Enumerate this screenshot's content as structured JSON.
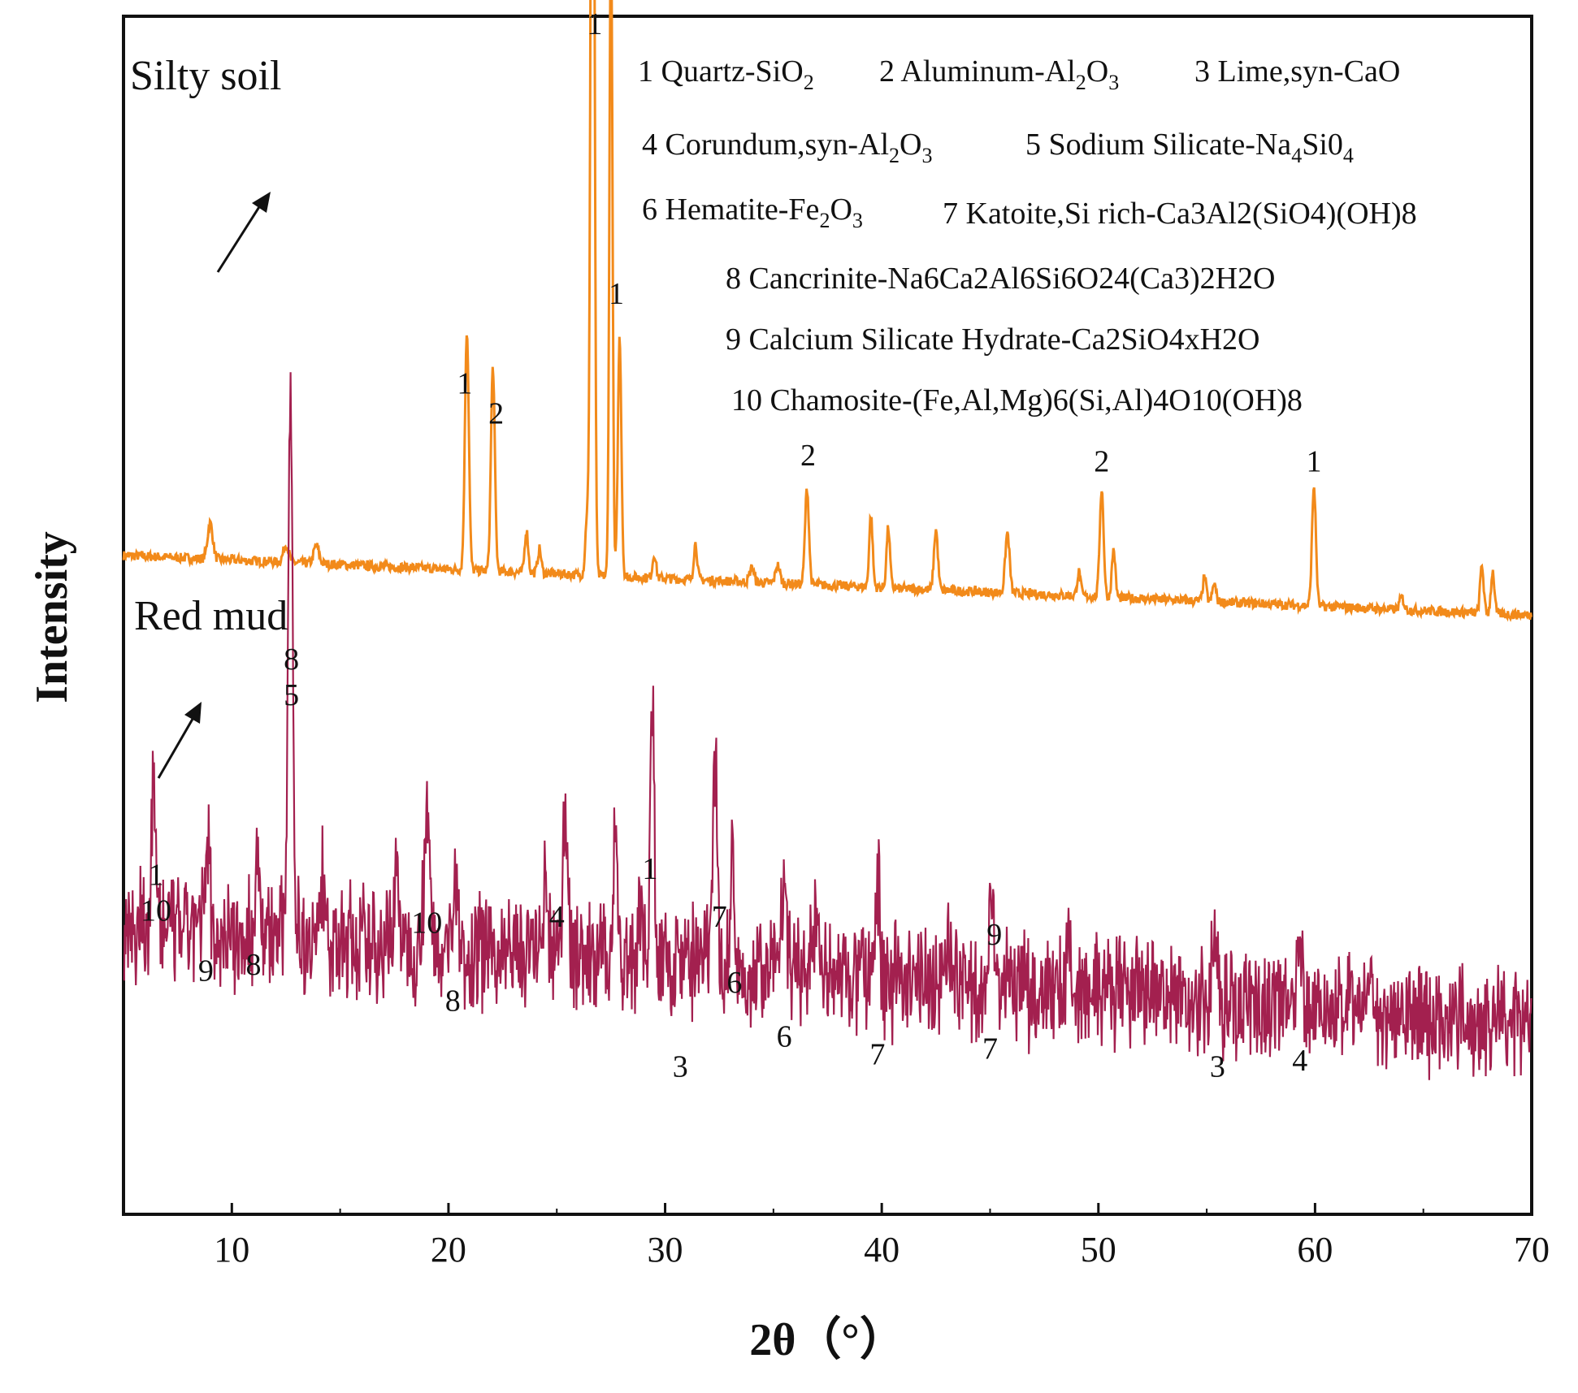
{
  "chart_data": {
    "type": "line",
    "xlabel": "2θ（°）",
    "ylabel": "Intensity",
    "xlim": [
      5,
      70
    ],
    "yaxis": "arbitrary units, traces vertically offset",
    "xticks": [
      10,
      20,
      30,
      40,
      50,
      60,
      70
    ],
    "grid": false,
    "colors": {
      "silty": "#f28a1a",
      "redmud": "#a3204f",
      "axis": "#111111"
    },
    "legend": [
      {
        "id": "1",
        "text": "1 Quartz-SiO",
        "sub": "2",
        "rest": ""
      },
      {
        "id": "2",
        "text": "2 Aluminum-Al",
        "sub": "2",
        "rest": "O",
        "sub2": "3"
      },
      {
        "id": "3",
        "text": "3 Lime,syn-CaO"
      },
      {
        "id": "4",
        "text": "4 Corundum,syn-Al",
        "sub": "2",
        "rest": "O",
        "sub2": "3"
      },
      {
        "id": "5",
        "text": "5 Sodium Silicate-Na",
        "sub": "4",
        "rest": "Si0",
        "sub2": "4"
      },
      {
        "id": "6",
        "text": "6 Hematite-Fe",
        "sub": "2",
        "rest": "O",
        "sub2": "3"
      },
      {
        "id": "7",
        "text": "7 Katoite,Si rich-Ca3Al2(SiO4)(OH)8"
      },
      {
        "id": "8",
        "text": "8 Cancrinite-Na6Ca2Al6Si6O24(Ca3)2H2O"
      },
      {
        "id": "9",
        "text": "9 Calcium Silicate Hydrate-Ca2SiO4xH2O"
      },
      {
        "id": "10",
        "text": "10 Chamosite-(Fe,Al,Mg)6(Si,Al)4O10(OH)8"
      }
    ],
    "series": [
      {
        "name": "Silty soil",
        "color": "#f28a1a",
        "baseline": 0.55,
        "drift": -0.05,
        "noise": 0.004,
        "peaks": [
          [
            9.0,
            0.03,
            0.12
          ],
          [
            12.5,
            0.015,
            0.12
          ],
          [
            13.9,
            0.015,
            0.12
          ],
          [
            20.85,
            0.2,
            0.09
          ],
          [
            22.05,
            0.17,
            0.09
          ],
          [
            23.6,
            0.035,
            0.08
          ],
          [
            24.2,
            0.02,
            0.08
          ],
          [
            26.65,
            1.0,
            0.08
          ],
          [
            27.5,
            0.55,
            0.07
          ],
          [
            27.9,
            0.2,
            0.08
          ],
          [
            26.4,
            0.05,
            0.08
          ],
          [
            29.5,
            0.02,
            0.08
          ],
          [
            31.4,
            0.03,
            0.08
          ],
          [
            34.0,
            0.012,
            0.1
          ],
          [
            35.2,
            0.015,
            0.1
          ],
          [
            36.55,
            0.08,
            0.09
          ],
          [
            39.5,
            0.06,
            0.08
          ],
          [
            40.3,
            0.05,
            0.08
          ],
          [
            42.5,
            0.05,
            0.09
          ],
          [
            45.8,
            0.05,
            0.1
          ],
          [
            49.1,
            0.02,
            0.08
          ],
          [
            50.15,
            0.09,
            0.09
          ],
          [
            50.7,
            0.04,
            0.08
          ],
          [
            54.9,
            0.02,
            0.08
          ],
          [
            55.35,
            0.015,
            0.08
          ],
          [
            59.95,
            0.1,
            0.09
          ],
          [
            64.0,
            0.01,
            0.1
          ],
          [
            67.7,
            0.04,
            0.08
          ],
          [
            68.2,
            0.035,
            0.08
          ]
        ]
      },
      {
        "name": "Red mud",
        "color": "#a3204f",
        "baseline": 0.24,
        "drift": -0.08,
        "noise": 0.035,
        "peaks": [
          [
            6.4,
            0.13,
            0.1
          ],
          [
            8.9,
            0.07,
            0.12
          ],
          [
            11.2,
            0.06,
            0.1
          ],
          [
            12.7,
            0.48,
            0.1
          ],
          [
            14.2,
            0.05,
            0.12
          ],
          [
            17.6,
            0.06,
            0.12
          ],
          [
            19.0,
            0.1,
            0.14
          ],
          [
            20.3,
            0.05,
            0.14
          ],
          [
            24.5,
            0.05,
            0.12
          ],
          [
            25.4,
            0.14,
            0.1
          ],
          [
            27.7,
            0.11,
            0.1
          ],
          [
            28.9,
            0.05,
            0.1
          ],
          [
            29.4,
            0.22,
            0.09
          ],
          [
            30.6,
            0.03,
            0.1
          ],
          [
            32.3,
            0.18,
            0.1
          ],
          [
            33.1,
            0.1,
            0.08
          ],
          [
            35.5,
            0.06,
            0.14
          ],
          [
            37.0,
            0.05,
            0.12
          ],
          [
            39.8,
            0.07,
            0.12
          ],
          [
            43.0,
            0.04,
            0.12
          ],
          [
            45.1,
            0.08,
            0.12
          ],
          [
            48.6,
            0.04,
            0.12
          ],
          [
            55.4,
            0.06,
            0.12
          ],
          [
            59.3,
            0.05,
            0.12
          ],
          [
            62.5,
            0.025,
            0.15
          ]
        ]
      }
    ],
    "peak_labels": [
      {
        "x": 26.75,
        "y": 0.985,
        "text": "1"
      },
      {
        "x": 27.75,
        "y": 0.76,
        "text": "1"
      },
      {
        "x": 20.75,
        "y": 0.685,
        "text": "1"
      },
      {
        "x": 22.2,
        "y": 0.66,
        "text": "2"
      },
      {
        "x": 36.6,
        "y": 0.625,
        "text": "2"
      },
      {
        "x": 50.15,
        "y": 0.62,
        "text": "2"
      },
      {
        "x": 59.95,
        "y": 0.62,
        "text": "1"
      },
      {
        "x": 12.75,
        "y": 0.455,
        "text": "8"
      },
      {
        "x": 12.75,
        "y": 0.425,
        "text": "5"
      },
      {
        "x": 6.5,
        "y": 0.275,
        "text": "1"
      },
      {
        "x": 6.5,
        "y": 0.245,
        "text": "10"
      },
      {
        "x": 8.8,
        "y": 0.195,
        "text": "9"
      },
      {
        "x": 11.0,
        "y": 0.2,
        "text": "8"
      },
      {
        "x": 19.0,
        "y": 0.235,
        "text": "10"
      },
      {
        "x": 20.2,
        "y": 0.17,
        "text": "8"
      },
      {
        "x": 25.0,
        "y": 0.24,
        "text": "4"
      },
      {
        "x": 29.3,
        "y": 0.28,
        "text": "1"
      },
      {
        "x": 30.7,
        "y": 0.115,
        "text": "3"
      },
      {
        "x": 32.5,
        "y": 0.24,
        "text": "7"
      },
      {
        "x": 33.2,
        "y": 0.185,
        "text": "6"
      },
      {
        "x": 35.5,
        "y": 0.14,
        "text": "6"
      },
      {
        "x": 39.8,
        "y": 0.125,
        "text": "7"
      },
      {
        "x": 45.2,
        "y": 0.225,
        "text": "9"
      },
      {
        "x": 45.0,
        "y": 0.13,
        "text": "7"
      },
      {
        "x": 55.5,
        "y": 0.115,
        "text": "3"
      },
      {
        "x": 59.3,
        "y": 0.12,
        "text": "4"
      }
    ],
    "sample_labels": [
      "Silty soil",
      "Red mud"
    ]
  }
}
